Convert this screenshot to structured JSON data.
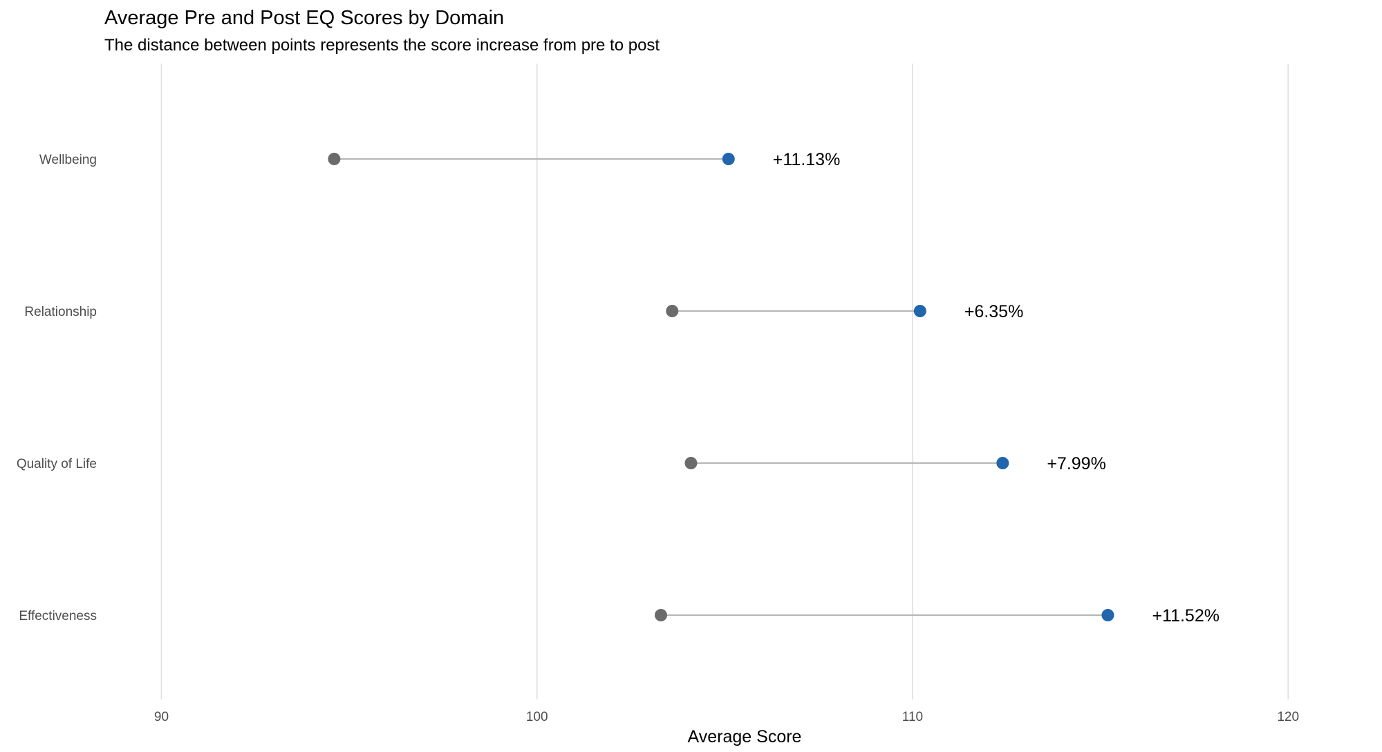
{
  "chart_data": {
    "type": "dumbbell",
    "title": "Average Pre and Post EQ Scores by Domain",
    "subtitle": "The distance between points represents the score increase from pre to post",
    "xlabel": "Average Score",
    "ylabel": "",
    "xlim": [
      88.5,
      122.5
    ],
    "xticks": [
      "90",
      "100",
      "110",
      "120"
    ],
    "grid": "vertical",
    "categories": [
      "Wellbeing",
      "Relationship",
      "Quality of Life",
      "Effectiveness"
    ],
    "series": [
      {
        "values": [
          94.6,
          103.6,
          104.1,
          103.3
        ],
        "color": "#6b6b6b"
      },
      {
        "values": [
          105.1,
          110.2,
          112.4,
          115.2
        ],
        "color": "#2166ac"
      }
    ],
    "labels": [
      "+11.13%",
      "+6.35%",
      "+7.99%",
      "+11.52%"
    ],
    "colors": {
      "connector": "#b7b7b7",
      "grid": "#dedede"
    }
  }
}
